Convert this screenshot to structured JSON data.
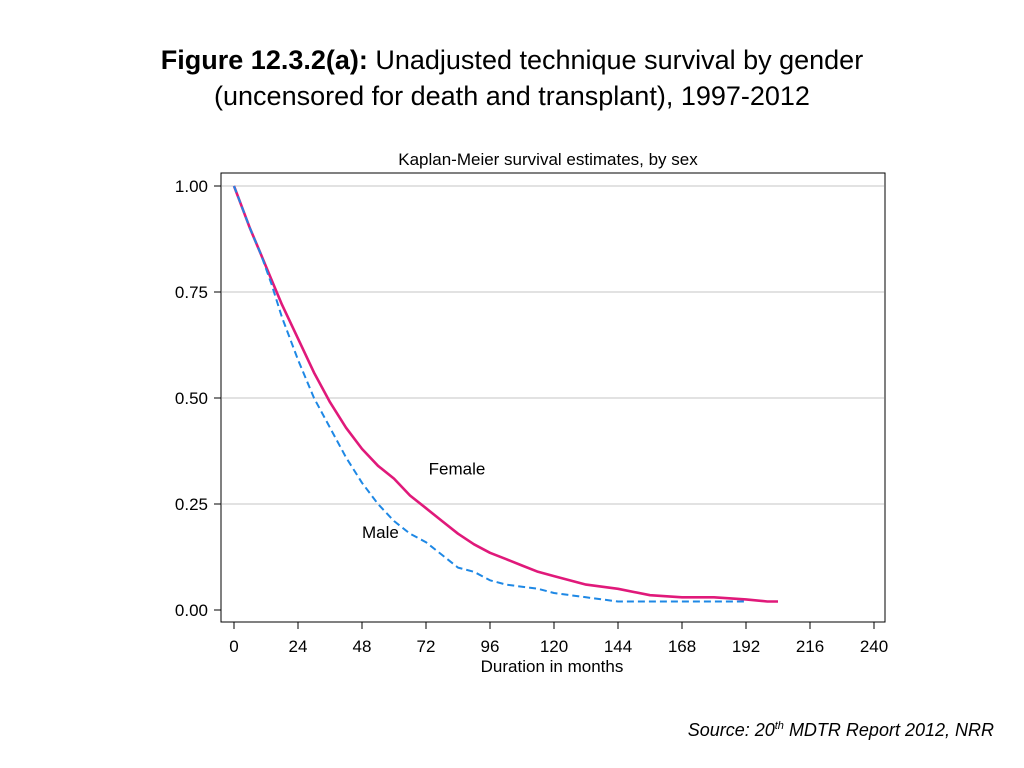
{
  "figure": {
    "label": "Figure 12.3.2(a):",
    "title_line1": "Unadjusted technique survival by gender",
    "title_line2": "(uncensored for death and transplant), 1997-2012"
  },
  "source": {
    "prefix": "Source: 20",
    "sup": "th",
    "suffix": " MDTR Report 2012, NRR"
  },
  "chart_data": {
    "type": "line",
    "title": "Kaplan-Meier survival estimates, by sex",
    "xlabel": "Duration in months",
    "ylabel": "",
    "xlim": [
      0,
      240
    ],
    "ylim": [
      0,
      1
    ],
    "xticks": [
      0,
      24,
      48,
      72,
      96,
      120,
      144,
      168,
      192,
      216,
      240
    ],
    "yticks": [
      0,
      0.25,
      0.5,
      0.75,
      1
    ],
    "ytick_labels": [
      "0.00",
      "0.25",
      "0.50",
      "0.75",
      "1.00"
    ],
    "grid": "horizontal",
    "series": [
      {
        "name": "Female",
        "color": "#e0197a",
        "style": "solid",
        "x": [
          0,
          3,
          6,
          10,
          14,
          18,
          24,
          30,
          36,
          42,
          48,
          54,
          60,
          66,
          72,
          78,
          84,
          90,
          96,
          102,
          108,
          114,
          120,
          132,
          144,
          156,
          168,
          180,
          192,
          200,
          204
        ],
        "y": [
          1.0,
          0.95,
          0.9,
          0.84,
          0.78,
          0.72,
          0.64,
          0.56,
          0.49,
          0.43,
          0.38,
          0.34,
          0.31,
          0.27,
          0.24,
          0.21,
          0.18,
          0.155,
          0.135,
          0.12,
          0.105,
          0.09,
          0.08,
          0.06,
          0.05,
          0.035,
          0.03,
          0.03,
          0.025,
          0.02,
          0.02
        ]
      },
      {
        "name": "Male",
        "color": "#1e88e5",
        "style": "dashed",
        "x": [
          0,
          3,
          6,
          10,
          14,
          18,
          24,
          30,
          36,
          42,
          48,
          54,
          60,
          66,
          72,
          78,
          84,
          90,
          96,
          102,
          108,
          114,
          120,
          132,
          144,
          156,
          168,
          180,
          192
        ],
        "y": [
          1.0,
          0.95,
          0.9,
          0.84,
          0.77,
          0.69,
          0.59,
          0.5,
          0.43,
          0.36,
          0.3,
          0.25,
          0.21,
          0.18,
          0.16,
          0.13,
          0.1,
          0.09,
          0.07,
          0.06,
          0.055,
          0.05,
          0.04,
          0.03,
          0.02,
          0.02,
          0.02,
          0.02,
          0.02
        ]
      }
    ],
    "annotations": [
      {
        "text": "Female",
        "x": 73,
        "y": 0.32
      },
      {
        "text": "Male",
        "x": 48,
        "y": 0.17
      }
    ]
  }
}
